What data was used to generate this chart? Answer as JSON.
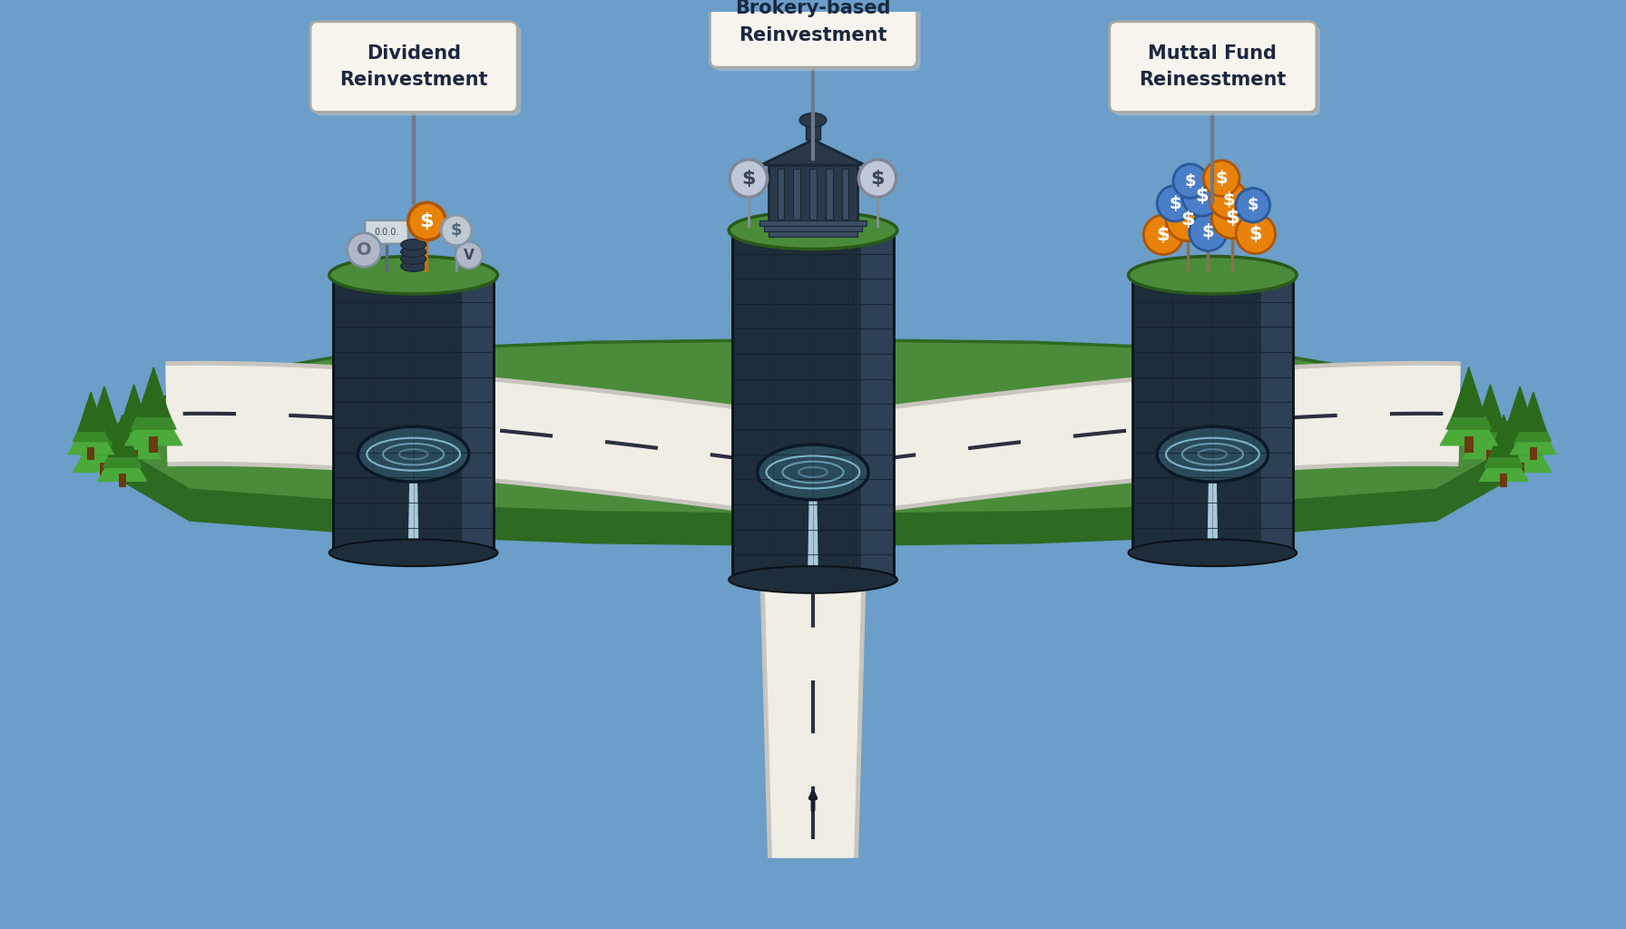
{
  "background_color": "#6b9ec8",
  "labels": {
    "left": [
      "Dividend",
      "Reinvestment"
    ],
    "center": [
      "Brokery-based",
      "Reinvestment"
    ],
    "right": [
      "Muttal Fund",
      "Reinesstment"
    ]
  },
  "label_text_color": "#1a2840",
  "road_color": "#f0ede5",
  "road_edge_color": "#c8c5be",
  "grass_color_top": "#4a8c3a",
  "grass_color_edge": "#2d6a22",
  "tower_dark": "#1e2d3a",
  "tower_mid": "#263545",
  "tower_light": "#2e4055",
  "tower_top_green": "#4a8c3a",
  "water_light": "#b8dcee",
  "water_mid": "#88c0d8",
  "water_dark": "#5a9cb8",
  "pool_dark": "#2a4a5a",
  "coin_orange": "#e8820a",
  "coin_orange_edge": "#b05500",
  "coin_blue": "#4a7ec8",
  "coin_blue_edge": "#2a5a9a",
  "coin_gray": "#8090a8",
  "tree_dark": "#2a6a1a",
  "tree_mid": "#3a8a2a",
  "tree_light": "#4aaa3a"
}
